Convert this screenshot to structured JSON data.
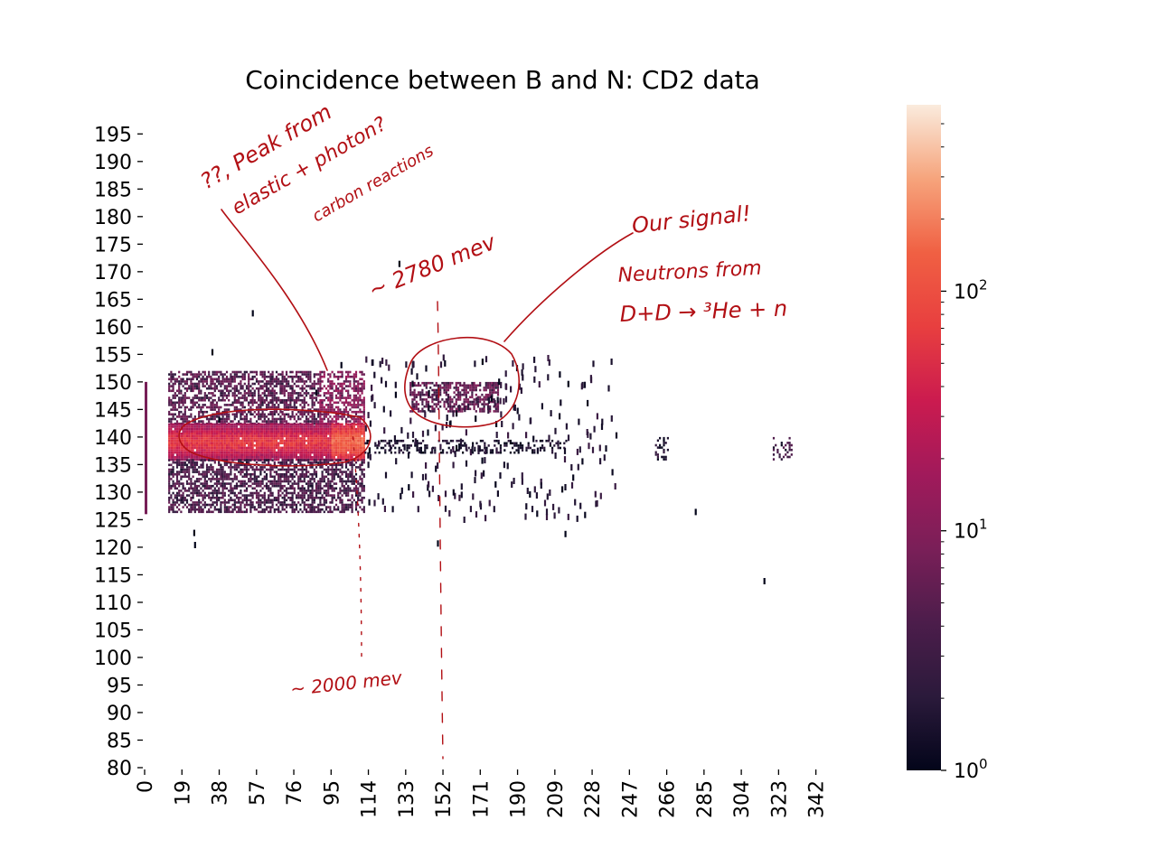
{
  "chart_data": {
    "type": "heatmap",
    "title": "Coincidence between B and N: CD2 data",
    "xlabel": "",
    "ylabel": "",
    "x_ticks": [
      "0",
      "19",
      "38",
      "57",
      "76",
      "95",
      "114",
      "133",
      "152",
      "171",
      "190",
      "209",
      "228",
      "247",
      "266",
      "285",
      "304",
      "323",
      "342"
    ],
    "y_ticks": [
      "80",
      "85",
      "90",
      "95",
      "100",
      "105",
      "110",
      "115",
      "120",
      "125",
      "130",
      "135",
      "140",
      "145",
      "150",
      "155",
      "160",
      "165",
      "170",
      "175",
      "180",
      "185",
      "190",
      "195"
    ],
    "xlim": [
      0,
      350
    ],
    "ylim": [
      80,
      198
    ],
    "colorbar": {
      "scale": "log",
      "range": [
        1,
        600
      ],
      "major_ticks": [
        {
          "value": 1,
          "label": "10",
          "exp": "0"
        },
        {
          "value": 10,
          "label": "10",
          "exp": "1"
        },
        {
          "value": 100,
          "label": "10",
          "exp": "2"
        }
      ],
      "colormap": "rocket",
      "colors": [
        "#03051a",
        "#2b1a3b",
        "#4c1d4b",
        "#7a1f58",
        "#a11a5b",
        "#cb1b4f",
        "#e83f3f",
        "#f06043",
        "#f6a47c",
        "#faebdd"
      ]
    },
    "regions": [
      {
        "name": "band-high",
        "x": [
          12,
          112
        ],
        "y": [
          142.5,
          152
        ],
        "level": 5
      },
      {
        "name": "band-main",
        "x": [
          12,
          112
        ],
        "y": [
          136,
          142.5
        ],
        "level": 60
      },
      {
        "name": "band-low",
        "x": [
          12,
          112
        ],
        "y": [
          126.5,
          136
        ],
        "level": 4
      },
      {
        "name": "signal-cluster",
        "x": [
          135,
          180
        ],
        "y": [
          144.5,
          150
        ],
        "level": 6
      },
      {
        "name": "stripe-138",
        "x": [
          112,
          215
        ],
        "y": [
          137,
          139.5
        ],
        "level": 1.5
      },
      {
        "name": "cluster-263",
        "x": [
          260,
          267
        ],
        "y": [
          136,
          140
        ],
        "level": 2
      },
      {
        "name": "cluster-324",
        "x": [
          320,
          330
        ],
        "y": [
          136,
          140
        ],
        "level": 3
      }
    ],
    "annotations": {
      "peak_note_1": "??, Peak from",
      "peak_note_2": "elastic + photon?",
      "peak_note_3": "carbon reactions",
      "peak_2000": "~ 2000 mev",
      "peak_2780": "~ 2780 mev",
      "signal_1": "Our signal!",
      "signal_2": "Neutrons from",
      "signal_3": "D+D → ³He + n"
    }
  }
}
